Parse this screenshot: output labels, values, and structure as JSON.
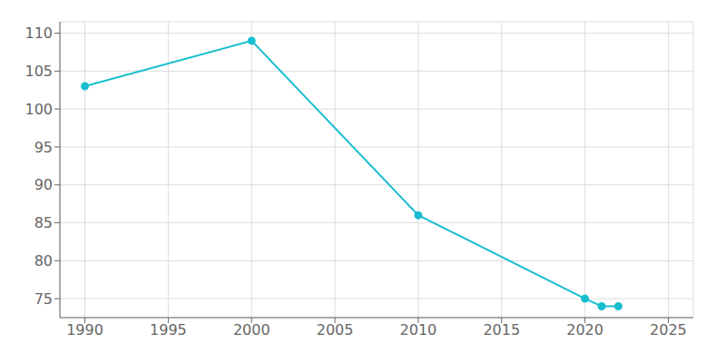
{
  "chart_data": {
    "type": "line",
    "x": [
      1990,
      2000,
      2010,
      2020,
      2021,
      2022
    ],
    "values": [
      103,
      109,
      86,
      75,
      74,
      74
    ],
    "color": "#17BECF",
    "marker": "circle",
    "xlim": [
      1988.5,
      2026.5
    ],
    "ylim": [
      72.5,
      111.5
    ],
    "xticks": [
      1990,
      1995,
      2000,
      2005,
      2010,
      2015,
      2020,
      2025
    ],
    "yticks": [
      75,
      80,
      85,
      90,
      95,
      100,
      105,
      110
    ],
    "grid": true
  }
}
